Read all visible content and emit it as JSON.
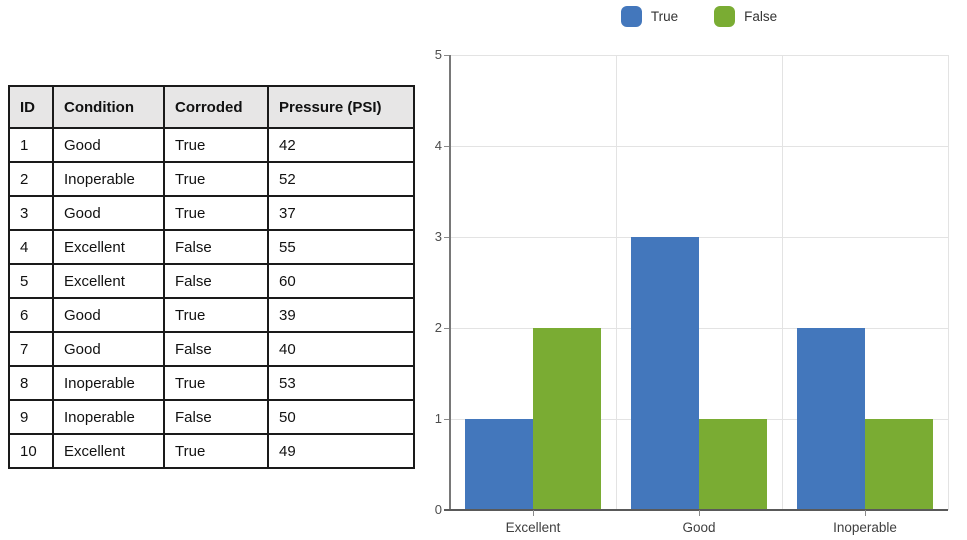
{
  "table": {
    "headers": [
      "ID",
      "Condition",
      "Corroded",
      "Pressure (PSI)"
    ],
    "rows": [
      [
        "1",
        "Good",
        "True",
        "42"
      ],
      [
        "2",
        "Inoperable",
        "True",
        "52"
      ],
      [
        "3",
        "Good",
        "True",
        "37"
      ],
      [
        "4",
        "Excellent",
        "False",
        "55"
      ],
      [
        "5",
        "Excellent",
        "False",
        "60"
      ],
      [
        "6",
        "Good",
        "True",
        "39"
      ],
      [
        "7",
        "Good",
        "False",
        "40"
      ],
      [
        "8",
        "Inoperable",
        "True",
        "53"
      ],
      [
        "9",
        "Inoperable",
        "False",
        "50"
      ],
      [
        "10",
        "Excellent",
        "True",
        "49"
      ]
    ]
  },
  "chart_data": {
    "type": "bar",
    "title": "",
    "xlabel": "",
    "ylabel": "",
    "categories": [
      "Excellent",
      "Good",
      "Inoperable"
    ],
    "series": [
      {
        "name": "True",
        "color": "#4377BC",
        "values": [
          1,
          3,
          2
        ]
      },
      {
        "name": "False",
        "color": "#7AAC33",
        "values": [
          2,
          1,
          1
        ]
      }
    ],
    "ylim": [
      0,
      5
    ],
    "yticks": [
      0,
      1,
      2,
      3,
      4,
      5
    ],
    "grid": true,
    "legend_position": "top"
  },
  "colors": {
    "table_header_bg": "#E7E6E6",
    "table_border": "#1A1A1A",
    "grid_line": "#E3E3E3",
    "axis_line": "#595959",
    "tick_label": "#404040",
    "series_true": "#4377BC",
    "series_false": "#7AAC33"
  }
}
